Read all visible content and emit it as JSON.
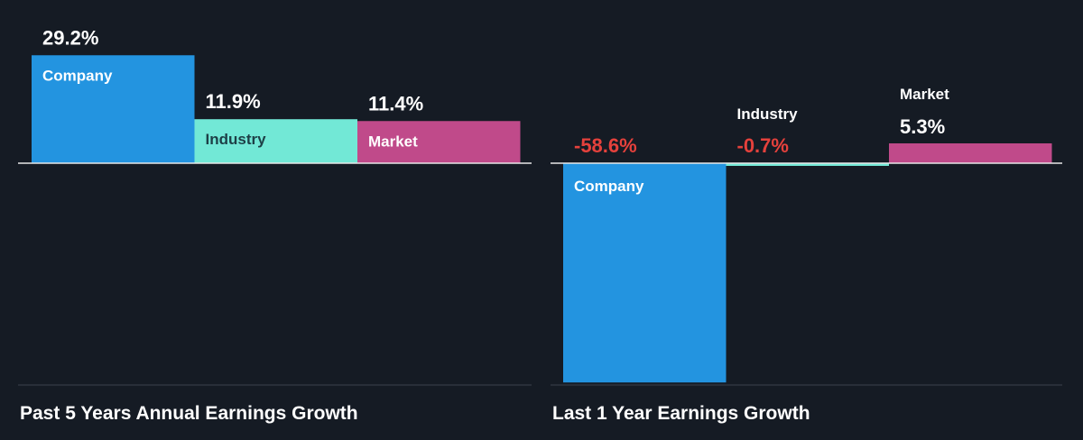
{
  "colors": {
    "background": "#151b24",
    "company": "#2394e0",
    "industry": "#72e8d6",
    "market": "#c04a8a",
    "positive_label": "#ffffff",
    "negative_label": "#e5413c",
    "cat_on_company": "#ffffff",
    "cat_on_industry": "#1d3f46",
    "cat_on_market": "#ffffff",
    "cat_outside": "#ffffff",
    "axis": "#e8e8e8",
    "baseline": "#3a414c"
  },
  "chart_data": [
    {
      "type": "bar",
      "title": "Past 5 Years Annual Earnings Growth",
      "categories": [
        "Company",
        "Industry",
        "Market"
      ],
      "values": [
        29.2,
        11.9,
        11.4
      ],
      "value_labels": [
        "29.2%",
        "11.9%",
        "11.4%"
      ],
      "unit": "%"
    },
    {
      "type": "bar",
      "title": "Last 1 Year Earnings Growth",
      "categories": [
        "Company",
        "Industry",
        "Market"
      ],
      "values": [
        -58.6,
        -0.7,
        5.3
      ],
      "value_labels": [
        "-58.6%",
        "-0.7%",
        "5.3%"
      ],
      "unit": "%"
    }
  ]
}
